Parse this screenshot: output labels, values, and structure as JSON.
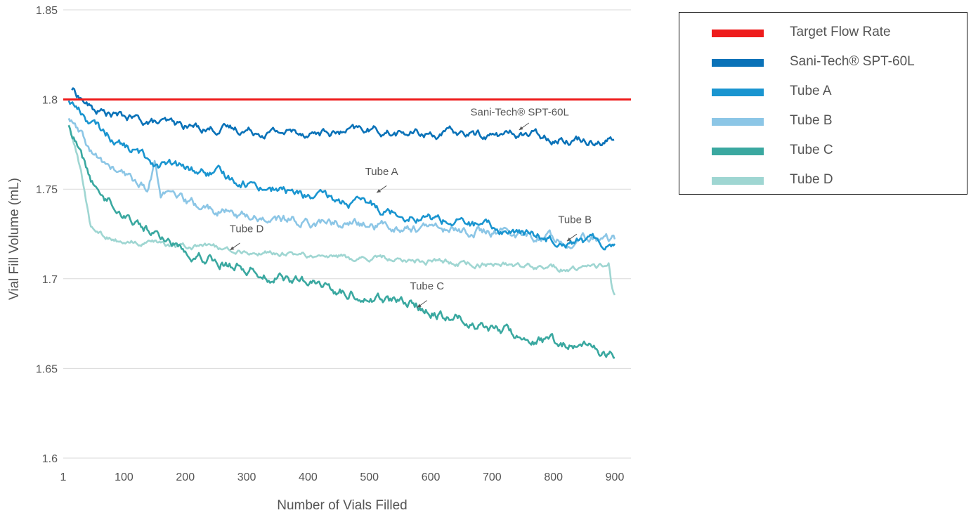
{
  "chart_data": {
    "type": "line",
    "title": "",
    "xlabel": "Number of Vials Filled",
    "ylabel": "Vial Fill Volume (mL)",
    "xlim": [
      1,
      920
    ],
    "ylim": [
      1.6,
      1.85
    ],
    "x_ticks": [
      1,
      100,
      200,
      300,
      400,
      500,
      600,
      700,
      800,
      900
    ],
    "y_ticks": [
      1.6,
      1.65,
      1.7,
      1.75,
      1.8,
      1.85
    ],
    "y_tick_labels": [
      "1.6",
      "1.65",
      "1.7",
      "1.75",
      "1.8",
      "1.85"
    ],
    "grid": "horizontal",
    "legend_position": "right",
    "series": [
      {
        "name": "Target Flow Rate",
        "color": "#ee1c1c",
        "x": [
          1,
          920
        ],
        "y": [
          1.8,
          1.8
        ]
      },
      {
        "name": "Sani-Tech® SPT-60L",
        "color": "#0a72b8",
        "x": [
          15,
          50,
          100,
          150,
          200,
          250,
          300,
          350,
          400,
          450,
          500,
          550,
          600,
          650,
          700,
          750,
          800,
          850,
          900
        ],
        "y": [
          1.806,
          1.794,
          1.79,
          1.787,
          1.785,
          1.784,
          1.783,
          1.782,
          1.782,
          1.781,
          1.783,
          1.781,
          1.781,
          1.781,
          1.78,
          1.781,
          1.779,
          1.778,
          1.778
        ]
      },
      {
        "name": "Tube A",
        "color": "#1a95d0",
        "x": [
          10,
          50,
          100,
          150,
          200,
          250,
          300,
          350,
          400,
          450,
          500,
          550,
          600,
          650,
          700,
          750,
          800,
          850,
          900
        ],
        "y": [
          1.8,
          1.786,
          1.774,
          1.765,
          1.761,
          1.758,
          1.754,
          1.75,
          1.746,
          1.743,
          1.741,
          1.737,
          1.734,
          1.731,
          1.728,
          1.725,
          1.723,
          1.721,
          1.72
        ]
      },
      {
        "name": "Tube B",
        "color": "#8cc6e6",
        "x": [
          10,
          50,
          100,
          140,
          150,
          160,
          200,
          250,
          300,
          350,
          400,
          450,
          500,
          550,
          600,
          650,
          700,
          750,
          800,
          850,
          900
        ],
        "y": [
          1.79,
          1.768,
          1.757,
          1.751,
          1.764,
          1.748,
          1.742,
          1.738,
          1.735,
          1.733,
          1.732,
          1.731,
          1.73,
          1.729,
          1.728,
          1.727,
          1.726,
          1.724,
          1.723,
          1.722,
          1.721
        ]
      },
      {
        "name": "Tube C",
        "color": "#3aa8a0",
        "x": [
          10,
          50,
          100,
          150,
          200,
          250,
          300,
          350,
          400,
          450,
          500,
          550,
          600,
          650,
          700,
          750,
          800,
          850,
          900
        ],
        "y": [
          1.786,
          1.752,
          1.737,
          1.725,
          1.717,
          1.711,
          1.706,
          1.701,
          1.697,
          1.693,
          1.69,
          1.687,
          1.683,
          1.678,
          1.673,
          1.668,
          1.665,
          1.661,
          1.658
        ]
      },
      {
        "name": "Tube D",
        "color": "#9fd6d2",
        "x": [
          10,
          30,
          45,
          60,
          80,
          100,
          150,
          200,
          250,
          300,
          350,
          400,
          450,
          500,
          550,
          600,
          650,
          700,
          750,
          800,
          850,
          890,
          895,
          900
        ],
        "y": [
          1.786,
          1.76,
          1.73,
          1.726,
          1.722,
          1.72,
          1.719,
          1.718,
          1.717,
          1.715,
          1.714,
          1.713,
          1.712,
          1.711,
          1.711,
          1.71,
          1.709,
          1.708,
          1.707,
          1.706,
          1.705,
          1.708,
          1.695,
          1.69
        ]
      }
    ],
    "annotations": [
      {
        "text": "Sani-Tech® SPT-60L",
        "x": 745,
        "y": 1.791,
        "arrow_to": [
          744,
          1.783
        ]
      },
      {
        "text": "Tube A",
        "x": 520,
        "y": 1.758,
        "arrow_to": [
          512,
          1.748
        ]
      },
      {
        "text": "Tube B",
        "x": 835,
        "y": 1.731,
        "arrow_to": [
          822,
          1.721
        ]
      },
      {
        "text": "Tube D",
        "x": 300,
        "y": 1.726,
        "arrow_to": [
          273,
          1.716
        ]
      },
      {
        "text": "Tube C",
        "x": 594,
        "y": 1.694,
        "arrow_to": [
          578,
          1.684
        ]
      }
    ]
  }
}
